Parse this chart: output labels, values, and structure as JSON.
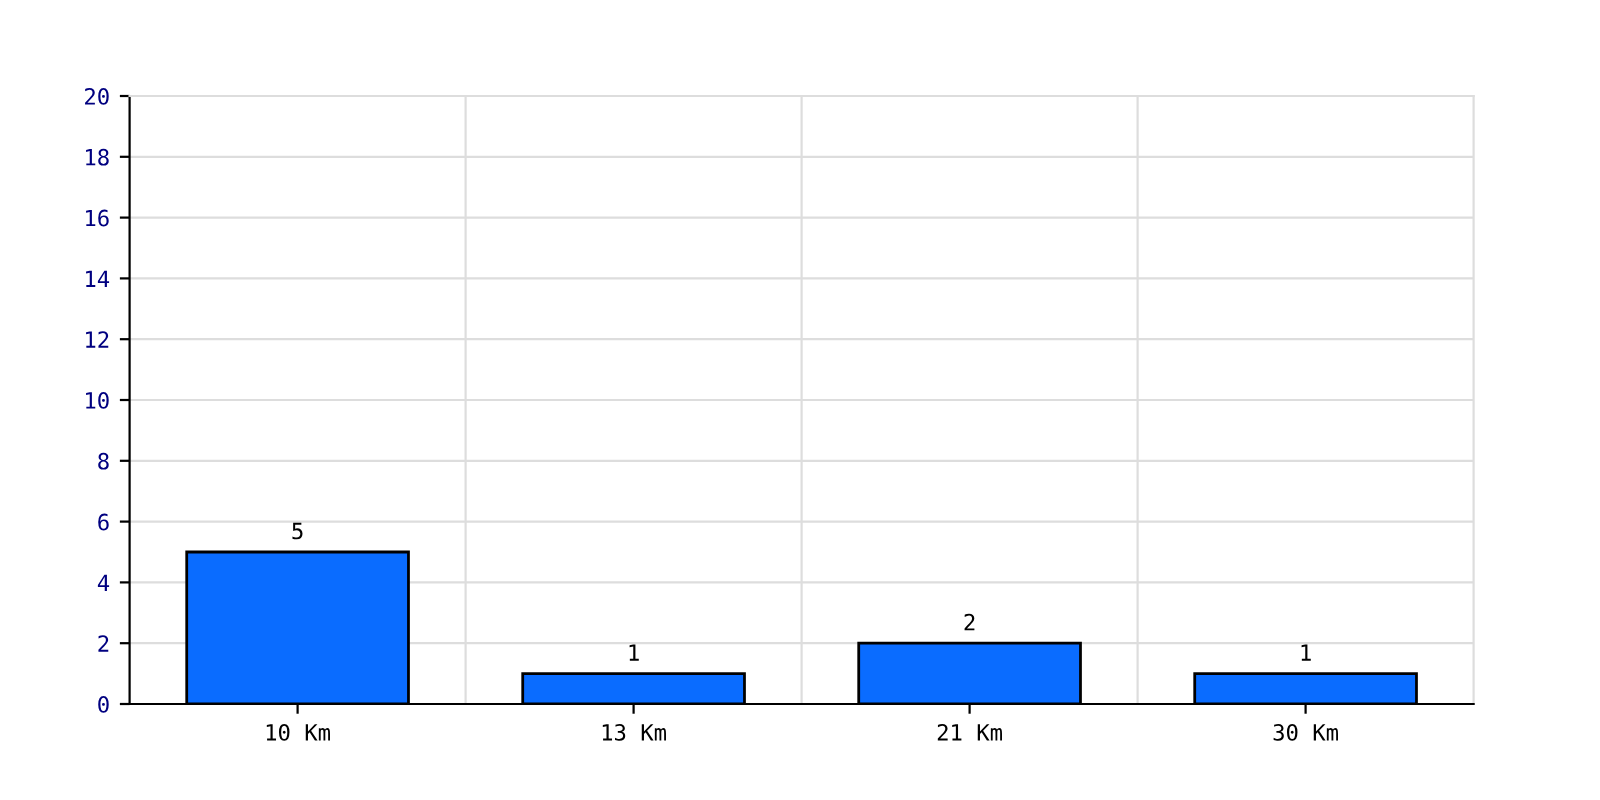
{
  "chart_data": {
    "type": "bar",
    "categories": [
      "10 Km",
      "13 Km",
      "21 Km",
      "30 Km"
    ],
    "values": [
      5,
      1,
      2,
      1
    ],
    "color": "#0a6cff",
    "ylim": [
      0,
      20
    ],
    "yticks": [
      0,
      2,
      4,
      6,
      8,
      10,
      12,
      14,
      16,
      18,
      20
    ],
    "grid": true,
    "data_labels": true
  }
}
